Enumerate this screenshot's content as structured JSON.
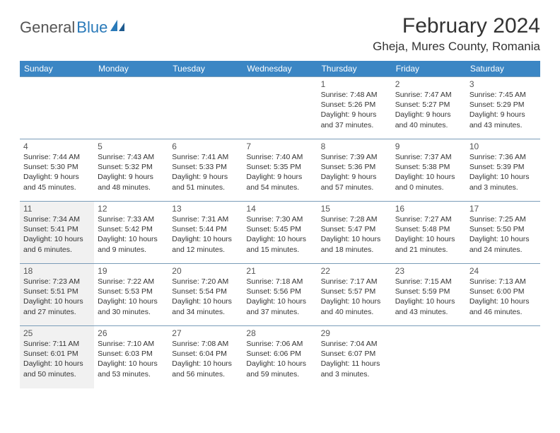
{
  "logo": {
    "text_gray": "General",
    "text_blue": "Blue"
  },
  "title": "February 2024",
  "location": "Gheja, Mures County, Romania",
  "colors": {
    "header_bg": "#3b86c4",
    "header_text": "#ffffff",
    "border": "#7a9cb8",
    "shade": "#f1f1f1",
    "text": "#333333"
  },
  "day_headers": [
    "Sunday",
    "Monday",
    "Tuesday",
    "Wednesday",
    "Thursday",
    "Friday",
    "Saturday"
  ],
  "weeks": [
    [
      {
        "empty": true
      },
      {
        "empty": true
      },
      {
        "empty": true
      },
      {
        "empty": true
      },
      {
        "day": "1",
        "sunrise": "Sunrise: 7:48 AM",
        "sunset": "Sunset: 5:26 PM",
        "dl1": "Daylight: 9 hours",
        "dl2": "and 37 minutes."
      },
      {
        "day": "2",
        "sunrise": "Sunrise: 7:47 AM",
        "sunset": "Sunset: 5:27 PM",
        "dl1": "Daylight: 9 hours",
        "dl2": "and 40 minutes."
      },
      {
        "day": "3",
        "sunrise": "Sunrise: 7:45 AM",
        "sunset": "Sunset: 5:29 PM",
        "dl1": "Daylight: 9 hours",
        "dl2": "and 43 minutes."
      }
    ],
    [
      {
        "day": "4",
        "sunrise": "Sunrise: 7:44 AM",
        "sunset": "Sunset: 5:30 PM",
        "dl1": "Daylight: 9 hours",
        "dl2": "and 45 minutes."
      },
      {
        "day": "5",
        "sunrise": "Sunrise: 7:43 AM",
        "sunset": "Sunset: 5:32 PM",
        "dl1": "Daylight: 9 hours",
        "dl2": "and 48 minutes."
      },
      {
        "day": "6",
        "sunrise": "Sunrise: 7:41 AM",
        "sunset": "Sunset: 5:33 PM",
        "dl1": "Daylight: 9 hours",
        "dl2": "and 51 minutes."
      },
      {
        "day": "7",
        "sunrise": "Sunrise: 7:40 AM",
        "sunset": "Sunset: 5:35 PM",
        "dl1": "Daylight: 9 hours",
        "dl2": "and 54 minutes."
      },
      {
        "day": "8",
        "sunrise": "Sunrise: 7:39 AM",
        "sunset": "Sunset: 5:36 PM",
        "dl1": "Daylight: 9 hours",
        "dl2": "and 57 minutes."
      },
      {
        "day": "9",
        "sunrise": "Sunrise: 7:37 AM",
        "sunset": "Sunset: 5:38 PM",
        "dl1": "Daylight: 10 hours",
        "dl2": "and 0 minutes."
      },
      {
        "day": "10",
        "sunrise": "Sunrise: 7:36 AM",
        "sunset": "Sunset: 5:39 PM",
        "dl1": "Daylight: 10 hours",
        "dl2": "and 3 minutes."
      }
    ],
    [
      {
        "day": "11",
        "shade": true,
        "sunrise": "Sunrise: 7:34 AM",
        "sunset": "Sunset: 5:41 PM",
        "dl1": "Daylight: 10 hours",
        "dl2": "and 6 minutes."
      },
      {
        "day": "12",
        "sunrise": "Sunrise: 7:33 AM",
        "sunset": "Sunset: 5:42 PM",
        "dl1": "Daylight: 10 hours",
        "dl2": "and 9 minutes."
      },
      {
        "day": "13",
        "sunrise": "Sunrise: 7:31 AM",
        "sunset": "Sunset: 5:44 PM",
        "dl1": "Daylight: 10 hours",
        "dl2": "and 12 minutes."
      },
      {
        "day": "14",
        "sunrise": "Sunrise: 7:30 AM",
        "sunset": "Sunset: 5:45 PM",
        "dl1": "Daylight: 10 hours",
        "dl2": "and 15 minutes."
      },
      {
        "day": "15",
        "sunrise": "Sunrise: 7:28 AM",
        "sunset": "Sunset: 5:47 PM",
        "dl1": "Daylight: 10 hours",
        "dl2": "and 18 minutes."
      },
      {
        "day": "16",
        "sunrise": "Sunrise: 7:27 AM",
        "sunset": "Sunset: 5:48 PM",
        "dl1": "Daylight: 10 hours",
        "dl2": "and 21 minutes."
      },
      {
        "day": "17",
        "sunrise": "Sunrise: 7:25 AM",
        "sunset": "Sunset: 5:50 PM",
        "dl1": "Daylight: 10 hours",
        "dl2": "and 24 minutes."
      }
    ],
    [
      {
        "day": "18",
        "shade": true,
        "sunrise": "Sunrise: 7:23 AM",
        "sunset": "Sunset: 5:51 PM",
        "dl1": "Daylight: 10 hours",
        "dl2": "and 27 minutes."
      },
      {
        "day": "19",
        "sunrise": "Sunrise: 7:22 AM",
        "sunset": "Sunset: 5:53 PM",
        "dl1": "Daylight: 10 hours",
        "dl2": "and 30 minutes."
      },
      {
        "day": "20",
        "sunrise": "Sunrise: 7:20 AM",
        "sunset": "Sunset: 5:54 PM",
        "dl1": "Daylight: 10 hours",
        "dl2": "and 34 minutes."
      },
      {
        "day": "21",
        "sunrise": "Sunrise: 7:18 AM",
        "sunset": "Sunset: 5:56 PM",
        "dl1": "Daylight: 10 hours",
        "dl2": "and 37 minutes."
      },
      {
        "day": "22",
        "sunrise": "Sunrise: 7:17 AM",
        "sunset": "Sunset: 5:57 PM",
        "dl1": "Daylight: 10 hours",
        "dl2": "and 40 minutes."
      },
      {
        "day": "23",
        "sunrise": "Sunrise: 7:15 AM",
        "sunset": "Sunset: 5:59 PM",
        "dl1": "Daylight: 10 hours",
        "dl2": "and 43 minutes."
      },
      {
        "day": "24",
        "sunrise": "Sunrise: 7:13 AM",
        "sunset": "Sunset: 6:00 PM",
        "dl1": "Daylight: 10 hours",
        "dl2": "and 46 minutes."
      }
    ],
    [
      {
        "day": "25",
        "shade": true,
        "sunrise": "Sunrise: 7:11 AM",
        "sunset": "Sunset: 6:01 PM",
        "dl1": "Daylight: 10 hours",
        "dl2": "and 50 minutes."
      },
      {
        "day": "26",
        "sunrise": "Sunrise: 7:10 AM",
        "sunset": "Sunset: 6:03 PM",
        "dl1": "Daylight: 10 hours",
        "dl2": "and 53 minutes."
      },
      {
        "day": "27",
        "sunrise": "Sunrise: 7:08 AM",
        "sunset": "Sunset: 6:04 PM",
        "dl1": "Daylight: 10 hours",
        "dl2": "and 56 minutes."
      },
      {
        "day": "28",
        "sunrise": "Sunrise: 7:06 AM",
        "sunset": "Sunset: 6:06 PM",
        "dl1": "Daylight: 10 hours",
        "dl2": "and 59 minutes."
      },
      {
        "day": "29",
        "sunrise": "Sunrise: 7:04 AM",
        "sunset": "Sunset: 6:07 PM",
        "dl1": "Daylight: 11 hours",
        "dl2": "and 3 minutes."
      },
      {
        "empty": true
      },
      {
        "empty": true
      }
    ]
  ]
}
